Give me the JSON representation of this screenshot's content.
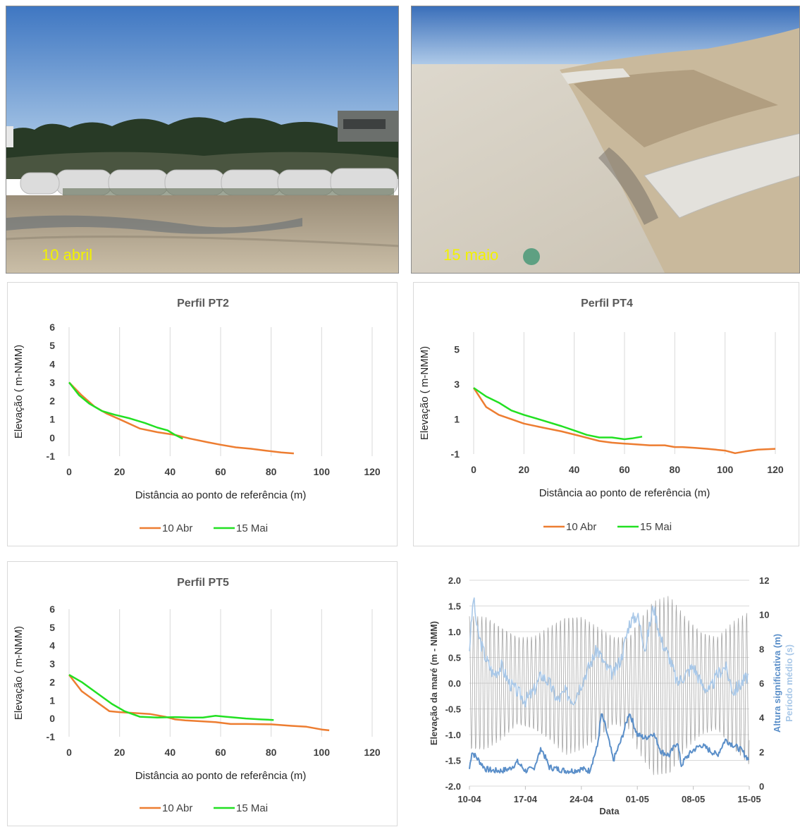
{
  "photos": {
    "left_caption": "10 abril",
    "right_caption": "15 maio"
  },
  "colors": {
    "abr": "#ed7d31",
    "mai": "#22e022",
    "grid": "#d9d9d9",
    "tide": "#a6a6a6",
    "hs": "#5b8fc9",
    "tm": "#a9c8e8"
  },
  "chart_data": [
    {
      "type": "line",
      "title": "Perfil PT2",
      "xlabel": "Distância ao ponto de referência (m)",
      "ylabel": "Elevação ( m-NMM)",
      "xlim": [
        0,
        120
      ],
      "ylim": [
        -1,
        6
      ],
      "xticks": [
        0,
        20,
        40,
        60,
        80,
        100,
        120
      ],
      "yticks": [
        -1,
        0,
        1,
        2,
        3,
        4,
        5,
        6
      ],
      "grid": "vertical",
      "legend": "bottom",
      "series": [
        {
          "name": "10 Abr",
          "color": "#ed7d31",
          "x": [
            0,
            5,
            10,
            15,
            20,
            28,
            35,
            42,
            48,
            55,
            60,
            66,
            72,
            78,
            84,
            89
          ],
          "y": [
            3.0,
            2.3,
            1.7,
            1.3,
            1.0,
            0.5,
            0.3,
            0.15,
            -0.05,
            -0.25,
            -0.38,
            -0.52,
            -0.6,
            -0.7,
            -0.8,
            -0.85
          ]
        },
        {
          "name": "15 Mai",
          "color": "#22e022",
          "x": [
            0,
            4,
            8,
            13,
            18,
            24,
            30,
            35,
            39,
            42,
            45
          ],
          "y": [
            3.0,
            2.3,
            1.85,
            1.45,
            1.25,
            1.05,
            0.8,
            0.55,
            0.4,
            0.15,
            -0.05
          ]
        }
      ]
    },
    {
      "type": "line",
      "title": "Perfil PT4",
      "xlabel": "Distância ao ponto de referência (m)",
      "ylabel": "Elevação ( m-NMM)",
      "xlim": [
        0,
        120
      ],
      "ylim": [
        -1,
        6
      ],
      "xticks": [
        0,
        20,
        40,
        60,
        80,
        100,
        120
      ],
      "yticks": [
        -1,
        1,
        3,
        5
      ],
      "grid": "vertical",
      "legend": "bottom",
      "series": [
        {
          "name": "10 Abr",
          "color": "#ed7d31",
          "x": [
            0,
            5,
            10,
            15,
            20,
            28,
            35,
            42,
            50,
            55,
            60,
            65,
            70,
            76,
            80,
            83,
            88,
            93,
            100,
            104,
            108,
            113,
            120
          ],
          "y": [
            2.8,
            1.7,
            1.25,
            1.0,
            0.75,
            0.5,
            0.3,
            0.05,
            -0.25,
            -0.35,
            -0.4,
            -0.45,
            -0.5,
            -0.5,
            -0.6,
            -0.6,
            -0.65,
            -0.7,
            -0.8,
            -0.95,
            -0.85,
            -0.75,
            -0.7
          ]
        },
        {
          "name": "15 Mai",
          "color": "#22e022",
          "x": [
            0,
            5,
            10,
            15,
            20,
            27,
            35,
            40,
            45,
            50,
            55,
            60,
            63,
            67
          ],
          "y": [
            2.8,
            2.3,
            1.95,
            1.5,
            1.25,
            0.95,
            0.6,
            0.35,
            0.1,
            -0.05,
            -0.05,
            -0.15,
            -0.1,
            0.0
          ]
        }
      ]
    },
    {
      "type": "line",
      "title": "Perfil PT5",
      "xlabel": "Distância ao ponto de referência (m)",
      "ylabel": "Elevação ( m-NMM)",
      "xlim": [
        0,
        120
      ],
      "ylim": [
        -1,
        6
      ],
      "xticks": [
        0,
        20,
        40,
        60,
        80,
        100,
        120
      ],
      "yticks": [
        -1,
        0,
        1,
        2,
        3,
        4,
        5,
        6
      ],
      "grid": "vertical",
      "legend": "bottom",
      "series": [
        {
          "name": "10 Abr",
          "color": "#ed7d31",
          "x": [
            0,
            5,
            10,
            16,
            20,
            26,
            32,
            38,
            42,
            46,
            52,
            58,
            64,
            70,
            80,
            88,
            94,
            100,
            103
          ],
          "y": [
            2.4,
            1.5,
            1.0,
            0.4,
            0.35,
            0.3,
            0.25,
            0.1,
            -0.05,
            -0.1,
            -0.15,
            -0.2,
            -0.3,
            -0.3,
            -0.32,
            -0.4,
            -0.45,
            -0.6,
            -0.65
          ]
        },
        {
          "name": "15 Mai",
          "color": "#22e022",
          "x": [
            0,
            5,
            10,
            17,
            22,
            28,
            35,
            42,
            48,
            53,
            58,
            62,
            70,
            76,
            81
          ],
          "y": [
            2.4,
            2.0,
            1.5,
            0.8,
            0.4,
            0.1,
            0.05,
            0.08,
            0.05,
            0.05,
            0.15,
            0.1,
            0.0,
            -0.05,
            -0.08
          ]
        }
      ]
    },
    {
      "type": "line",
      "title": "",
      "xlabel": "Data",
      "ylabel": "Elevação da maré (m - NMM)",
      "y2label_a": "Altura significativa (m)",
      "y2label_b": "Período médio (s)",
      "xlim_days": [
        0,
        35
      ],
      "xticks": [
        "10-04",
        "17-04",
        "24-04",
        "01-05",
        "08-05",
        "15-05"
      ],
      "ylim": [
        -2.0,
        2.0
      ],
      "yticks": [
        "2.0",
        "1.5",
        "1.0",
        "0.5",
        "0.0",
        "-0.5",
        "-1.0",
        "-1.5",
        "-2.0"
      ],
      "y2lim": [
        0,
        12
      ],
      "y2ticks": [
        "12",
        "10",
        "8",
        "6",
        "4",
        "2",
        "0"
      ],
      "grid": "horizontal",
      "series": [
        {
          "name": "Elevação da maré",
          "color": "#a6a6a6",
          "day_high": [
            0,
            2,
            4,
            6,
            8,
            10,
            12,
            14,
            16,
            18,
            20,
            21,
            23,
            25,
            27,
            29,
            31,
            33,
            35
          ],
          "high": [
            1.3,
            1.3,
            1.1,
            0.9,
            0.9,
            1.1,
            1.3,
            1.3,
            1.1,
            0.9,
            0.9,
            1.2,
            1.6,
            1.7,
            1.3,
            1.0,
            0.9,
            1.2,
            1.4
          ],
          "low": [
            -1.3,
            -1.3,
            -1.1,
            -0.8,
            -0.9,
            -1.1,
            -1.4,
            -1.3,
            -1.1,
            -0.8,
            -0.9,
            -1.3,
            -1.8,
            -1.8,
            -1.3,
            -1.0,
            -0.9,
            -1.3,
            -1.6
          ]
        },
        {
          "name": "Altura significativa",
          "color": "#5b8fc9",
          "x": [
            0,
            0.3,
            1,
            2,
            3,
            4,
            5,
            6,
            7,
            8,
            9,
            10,
            11,
            12,
            13,
            14,
            15,
            16,
            16.5,
            17,
            18,
            19,
            20,
            21,
            22,
            23,
            24,
            25,
            26,
            26.5,
            27,
            28,
            29,
            30,
            31,
            32,
            33,
            34,
            35
          ],
          "y": [
            1.0,
            2.0,
            1.6,
            1.0,
            0.9,
            0.9,
            1.0,
            1.4,
            0.9,
            1.0,
            2.2,
            1.1,
            1.0,
            0.9,
            0.9,
            1.0,
            0.9,
            2.3,
            4.2,
            3.5,
            1.5,
            2.7,
            4.3,
            3.0,
            2.8,
            3.1,
            2.0,
            1.8,
            2.6,
            1.2,
            1.6,
            2.1,
            2.4,
            2.1,
            1.8,
            2.7,
            2.4,
            2.1,
            1.5
          ]
        },
        {
          "name": "Período médio",
          "color": "#a9c8e8",
          "x": [
            0,
            0.5,
            1,
            2,
            3,
            4,
            5,
            6,
            7,
            8,
            9,
            10,
            11,
            12,
            13,
            14,
            15,
            16,
            17,
            18,
            19,
            20,
            21,
            22,
            23,
            24,
            25,
            26,
            27,
            28,
            29,
            30,
            31,
            32,
            33,
            34,
            35
          ],
          "y": [
            8.0,
            11.0,
            9.0,
            7.5,
            6.5,
            7.0,
            6.0,
            5.5,
            5.0,
            5.5,
            6.5,
            6.0,
            5.0,
            5.5,
            5.0,
            6.0,
            7.0,
            8.0,
            7.0,
            6.5,
            7.5,
            9.5,
            10.0,
            8.0,
            10.5,
            8.5,
            7.5,
            6.0,
            6.5,
            7.0,
            6.0,
            5.5,
            6.5,
            7.0,
            5.5,
            6.0,
            6.5
          ]
        }
      ]
    }
  ]
}
